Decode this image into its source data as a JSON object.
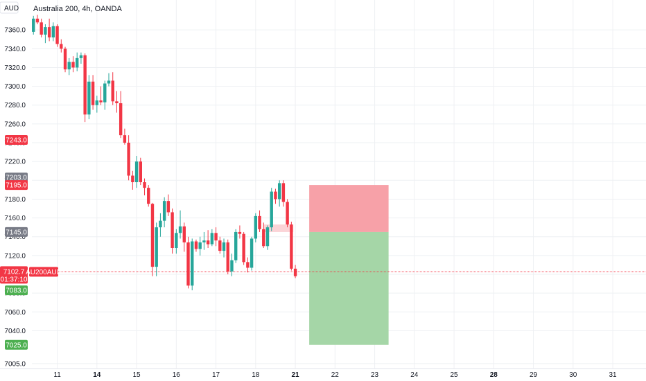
{
  "header": {
    "title": "Australia 200, 4h, OANDA",
    "currency": "AUD"
  },
  "colors": {
    "up": "#26a69a",
    "down": "#f23645",
    "grid": "#eef0f3",
    "gray_badge": "#787b86",
    "green_badge": "#4caf50",
    "red_badge": "#f23645",
    "stop_zone": "#f7a1a8",
    "target_zone": "#a5d6a7",
    "resistance_zone": "#fbd4d7"
  },
  "chart_data": {
    "type": "candlestick",
    "symbol": "AU200AUD",
    "timeframe": "4h",
    "ylim": [
      7000,
      7370
    ],
    "y_ticks": [
      "7005.0",
      "7040.0",
      "7060.0",
      "7080.0",
      "7100.0",
      "7120.0",
      "7140.0",
      "7160.0",
      "7180.0",
      "7200.0",
      "7220.0",
      "7240.0",
      "7260.0",
      "7280.0",
      "7300.0",
      "7320.0",
      "7340.0",
      "7360.0"
    ],
    "x_labels": [
      {
        "label": "11",
        "idx": 7,
        "bold": false
      },
      {
        "label": "14",
        "idx": 17,
        "bold": true
      },
      {
        "label": "15",
        "idx": 27,
        "bold": false
      },
      {
        "label": "16",
        "idx": 37,
        "bold": false
      },
      {
        "label": "17",
        "idx": 47,
        "bold": false
      },
      {
        "label": "18",
        "idx": 57,
        "bold": false
      },
      {
        "label": "21",
        "idx": 67,
        "bold": true
      },
      {
        "label": "22",
        "idx": 77,
        "bold": false
      },
      {
        "label": "23",
        "idx": 87,
        "bold": false
      },
      {
        "label": "24",
        "idx": 97,
        "bold": false
      },
      {
        "label": "25",
        "idx": 107,
        "bold": false
      },
      {
        "label": "28",
        "idx": 117,
        "bold": true
      },
      {
        "label": "29",
        "idx": 127,
        "bold": false
      },
      {
        "label": "30",
        "idx": 137,
        "bold": false
      },
      {
        "label": "31",
        "idx": 147,
        "bold": false
      }
    ],
    "candles": [
      [
        1,
        7358,
        7375,
        7355,
        7372
      ],
      [
        2,
        7372,
        7376,
        7366,
        7368
      ],
      [
        3,
        7368,
        7372,
        7352,
        7355
      ],
      [
        4,
        7355,
        7366,
        7346,
        7363
      ],
      [
        5,
        7363,
        7372,
        7348,
        7352
      ],
      [
        6,
        7352,
        7368,
        7348,
        7364
      ],
      [
        7,
        7364,
        7366,
        7342,
        7345
      ],
      [
        8,
        7345,
        7350,
        7336,
        7340
      ],
      [
        9,
        7340,
        7342,
        7315,
        7318
      ],
      [
        10,
        7318,
        7330,
        7312,
        7326
      ],
      [
        11,
        7326,
        7332,
        7315,
        7320
      ],
      [
        12,
        7320,
        7336,
        7316,
        7330
      ],
      [
        13,
        7330,
        7336,
        7324,
        7333
      ],
      [
        14,
        7333,
        7335,
        7262,
        7270
      ],
      [
        15,
        7270,
        7312,
        7265,
        7305
      ],
      [
        16,
        7305,
        7312,
        7275,
        7280
      ],
      [
        17,
        7280,
        7290,
        7272,
        7285
      ],
      [
        18,
        7285,
        7300,
        7280,
        7283
      ],
      [
        19,
        7283,
        7306,
        7275,
        7303
      ],
      [
        20,
        7303,
        7314,
        7300,
        7306
      ],
      [
        21,
        7306,
        7315,
        7280,
        7284
      ],
      [
        22,
        7284,
        7295,
        7272,
        7282
      ],
      [
        23,
        7282,
        7295,
        7245,
        7248
      ],
      [
        24,
        7248,
        7255,
        7238,
        7240
      ],
      [
        25,
        7240,
        7248,
        7200,
        7205
      ],
      [
        26,
        7205,
        7210,
        7190,
        7198
      ],
      [
        27,
        7198,
        7226,
        7192,
        7220
      ],
      [
        28,
        7220,
        7224,
        7195,
        7198
      ],
      [
        29,
        7198,
        7202,
        7184,
        7192
      ],
      [
        30,
        7192,
        7195,
        7172,
        7175
      ],
      [
        31,
        7175,
        7176,
        7098,
        7108
      ],
      [
        32,
        7108,
        7155,
        7098,
        7150
      ],
      [
        33,
        7150,
        7165,
        7140,
        7157
      ],
      [
        34,
        7157,
        7182,
        7150,
        7178
      ],
      [
        35,
        7178,
        7185,
        7162,
        7166
      ],
      [
        36,
        7166,
        7170,
        7122,
        7128
      ],
      [
        37,
        7128,
        7148,
        7122,
        7144
      ],
      [
        38,
        7144,
        7168,
        7138,
        7151
      ],
      [
        39,
        7151,
        7155,
        7124,
        7134
      ],
      [
        40,
        7134,
        7140,
        7085,
        7088
      ],
      [
        41,
        7088,
        7138,
        7083,
        7135
      ],
      [
        42,
        7135,
        7137,
        7124,
        7127
      ],
      [
        43,
        7127,
        7140,
        7120,
        7134
      ],
      [
        44,
        7134,
        7145,
        7126,
        7136
      ],
      [
        45,
        7136,
        7147,
        7128,
        7132
      ],
      [
        46,
        7132,
        7148,
        7130,
        7144
      ],
      [
        47,
        7144,
        7150,
        7130,
        7136
      ],
      [
        48,
        7136,
        7140,
        7122,
        7125
      ],
      [
        49,
        7125,
        7138,
        7118,
        7134
      ],
      [
        50,
        7134,
        7137,
        7100,
        7103
      ],
      [
        51,
        7103,
        7122,
        7098,
        7115
      ],
      [
        52,
        7115,
        7148,
        7112,
        7145
      ],
      [
        53,
        7145,
        7152,
        7138,
        7143
      ],
      [
        54,
        7143,
        7145,
        7110,
        7113
      ],
      [
        55,
        7113,
        7118,
        7102,
        7107
      ],
      [
        56,
        7107,
        7140,
        7104,
        7138
      ],
      [
        57,
        7138,
        7165,
        7134,
        7162
      ],
      [
        58,
        7162,
        7168,
        7145,
        7148
      ],
      [
        59,
        7148,
        7155,
        7128,
        7130
      ],
      [
        60,
        7130,
        7152,
        7126,
        7150
      ],
      [
        61,
        7150,
        7192,
        7146,
        7188
      ],
      [
        62,
        7188,
        7191,
        7175,
        7180
      ],
      [
        63,
        7180,
        7200,
        7172,
        7197
      ],
      [
        64,
        7197,
        7200,
        7172,
        7177
      ],
      [
        65,
        7177,
        7180,
        7150,
        7153
      ],
      [
        66,
        7153,
        7156,
        7104,
        7106
      ],
      [
        67,
        7106,
        7110,
        7096,
        7098
      ]
    ],
    "zones": {
      "resistance": [
        7145,
        7153
      ],
      "stop": [
        7145,
        7195
      ],
      "target": [
        7025,
        7145
      ]
    },
    "price_labels": [
      {
        "value": 7243.0,
        "text": "7243.0",
        "style": "red"
      },
      {
        "value": 7203.0,
        "text": "7203.0",
        "style": "gray"
      },
      {
        "value": 7195.0,
        "text": "7195.0",
        "style": "red"
      },
      {
        "value": 7145.0,
        "text": "7145.0",
        "style": "gray"
      },
      {
        "value": 7083.0,
        "text": "7083.0",
        "style": "green"
      },
      {
        "value": 7025.0,
        "text": "7025.0",
        "style": "green"
      }
    ],
    "current": {
      "value": 7102.7,
      "price_text": "7102.7",
      "countdown": "01:37:10",
      "symbol": "AU200AUD"
    }
  }
}
